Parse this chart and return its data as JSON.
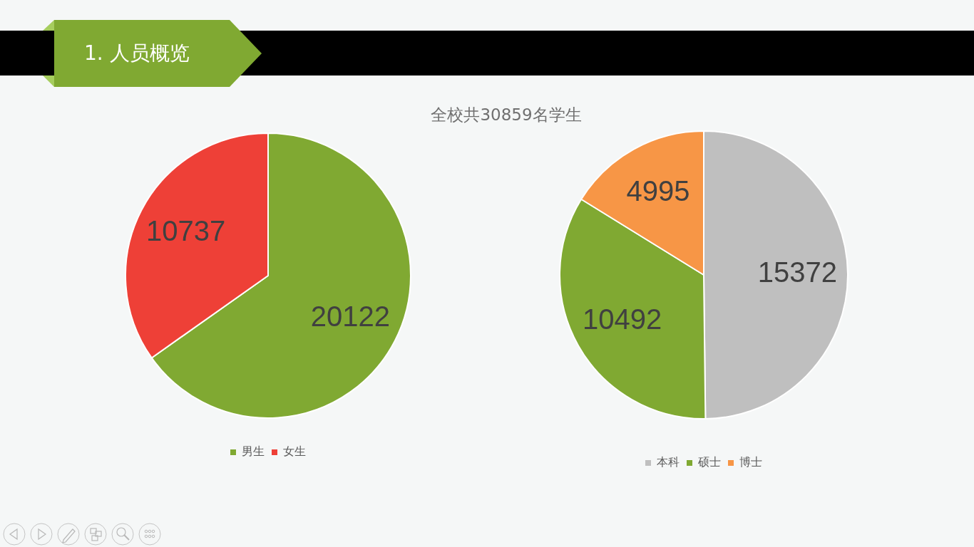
{
  "chart_data": [
    {
      "type": "other",
      "title": "1. 人员概览",
      "subtitle": "全校共30859名学生"
    },
    {
      "type": "pie",
      "categories": [
        "男生",
        "女生"
      ],
      "values": [
        20122,
        10737
      ],
      "colors": [
        "#80a932",
        "#ee4037"
      ],
      "data_labels": true,
      "legend": "bottom"
    },
    {
      "type": "pie",
      "categories": [
        "本科",
        "硕士",
        "博士"
      ],
      "values": [
        15372,
        10492,
        4995
      ],
      "colors": [
        "#bfbfbf",
        "#80a932",
        "#f79646"
      ],
      "data_labels": true,
      "legend": "bottom"
    }
  ]
}
